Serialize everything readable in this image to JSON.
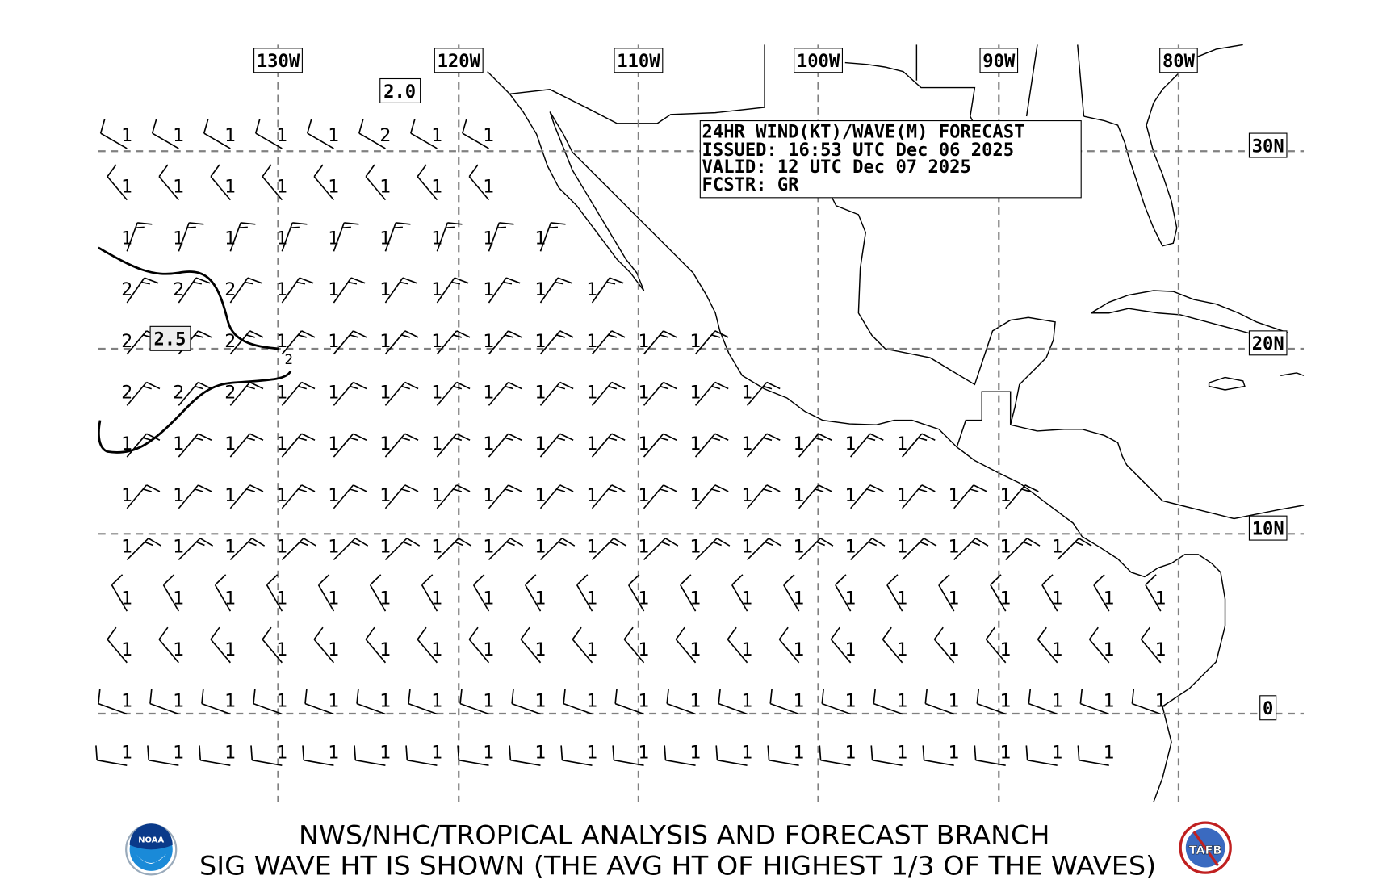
{
  "legend": {
    "line1": "24HR WIND(KT)/WAVE(M) FORECAST",
    "line2": "ISSUED: 16:53 UTC Dec 06 2025",
    "line3": "VALID: 12 UTC Dec 07 2025",
    "line4": "FCSTR: GR"
  },
  "longitude_labels": [
    "130W",
    "120W",
    "110W",
    "100W",
    "90W",
    "80W"
  ],
  "latitude_labels": [
    "30N",
    "20N",
    "10N",
    "0"
  ],
  "contour_labels": {
    "c20": "2.0",
    "c25": "2.5",
    "c2": "2"
  },
  "footer": {
    "line1": "NWS/NHC/TROPICAL ANALYSIS AND FORECAST BRANCH",
    "line2": "SIG WAVE HT IS SHOWN (THE AVG HT OF HIGHEST 1/3 OF THE WAVES)"
  },
  "logos": {
    "left": "NOAA",
    "right": "TAFB"
  },
  "colors": {
    "grid": "#808080",
    "ink": "#000000",
    "noaa_blue": "#1060b0",
    "tafb_red": "#c02020"
  },
  "wave_heights_m": [
    [
      1,
      1,
      1,
      1,
      1,
      2,
      1,
      1
    ],
    [
      1,
      1,
      1,
      1,
      1,
      1,
      1,
      1
    ],
    [
      1,
      1,
      1,
      1,
      1,
      1,
      1,
      1,
      1
    ],
    [
      2,
      2,
      2,
      1,
      1,
      1,
      1,
      1,
      1,
      1
    ],
    [
      2,
      null,
      2,
      1,
      1,
      1,
      1,
      1,
      1,
      1,
      1,
      1
    ],
    [
      2,
      2,
      2,
      1,
      1,
      1,
      1,
      1,
      1,
      1,
      1,
      1,
      1
    ],
    [
      1,
      1,
      1,
      1,
      1,
      1,
      1,
      1,
      1,
      1,
      1,
      1,
      1,
      1,
      1,
      1
    ],
    [
      1,
      1,
      1,
      1,
      1,
      1,
      1,
      1,
      1,
      1,
      1,
      1,
      1,
      1,
      1,
      1,
      1,
      1
    ],
    [
      1,
      1,
      1,
      1,
      1,
      1,
      1,
      1,
      1,
      1,
      1,
      1,
      1,
      1,
      1,
      1,
      1,
      1,
      1
    ],
    [
      1,
      1,
      1,
      1,
      1,
      1,
      1,
      1,
      1,
      1,
      1,
      1,
      1,
      1,
      1,
      1,
      1,
      1,
      1,
      1,
      1
    ],
    [
      1,
      1,
      1,
      1,
      1,
      1,
      1,
      1,
      1,
      1,
      1,
      1,
      1,
      1,
      1,
      1,
      1,
      1,
      1,
      1,
      1
    ],
    [
      1,
      1,
      1,
      1,
      1,
      1,
      1,
      1,
      1,
      1,
      1,
      1,
      1,
      1,
      1,
      1,
      1,
      1,
      1,
      1,
      1
    ],
    [
      1,
      1,
      1,
      1,
      1,
      1,
      1,
      1,
      1,
      1,
      1,
      1,
      1,
      1,
      1,
      1,
      1,
      1,
      1,
      1
    ]
  ],
  "wind_rows": [
    {
      "dir_from": 300,
      "kt": 10
    },
    {
      "dir_from": 320,
      "kt": 10
    },
    {
      "dir_from": 20,
      "kt": 15
    },
    {
      "dir_from": 35,
      "kt": 15
    },
    {
      "dir_from": 40,
      "kt": 15
    },
    {
      "dir_from": 40,
      "kt": 15
    },
    {
      "dir_from": 40,
      "kt": 15
    },
    {
      "dir_from": 40,
      "kt": 15
    },
    {
      "dir_from": 45,
      "kt": 15
    },
    {
      "dir_from": 330,
      "kt": 10
    },
    {
      "dir_from": 320,
      "kt": 10
    },
    {
      "dir_from": 290,
      "kt": 10
    },
    {
      "dir_from": 280,
      "kt": 10
    }
  ]
}
